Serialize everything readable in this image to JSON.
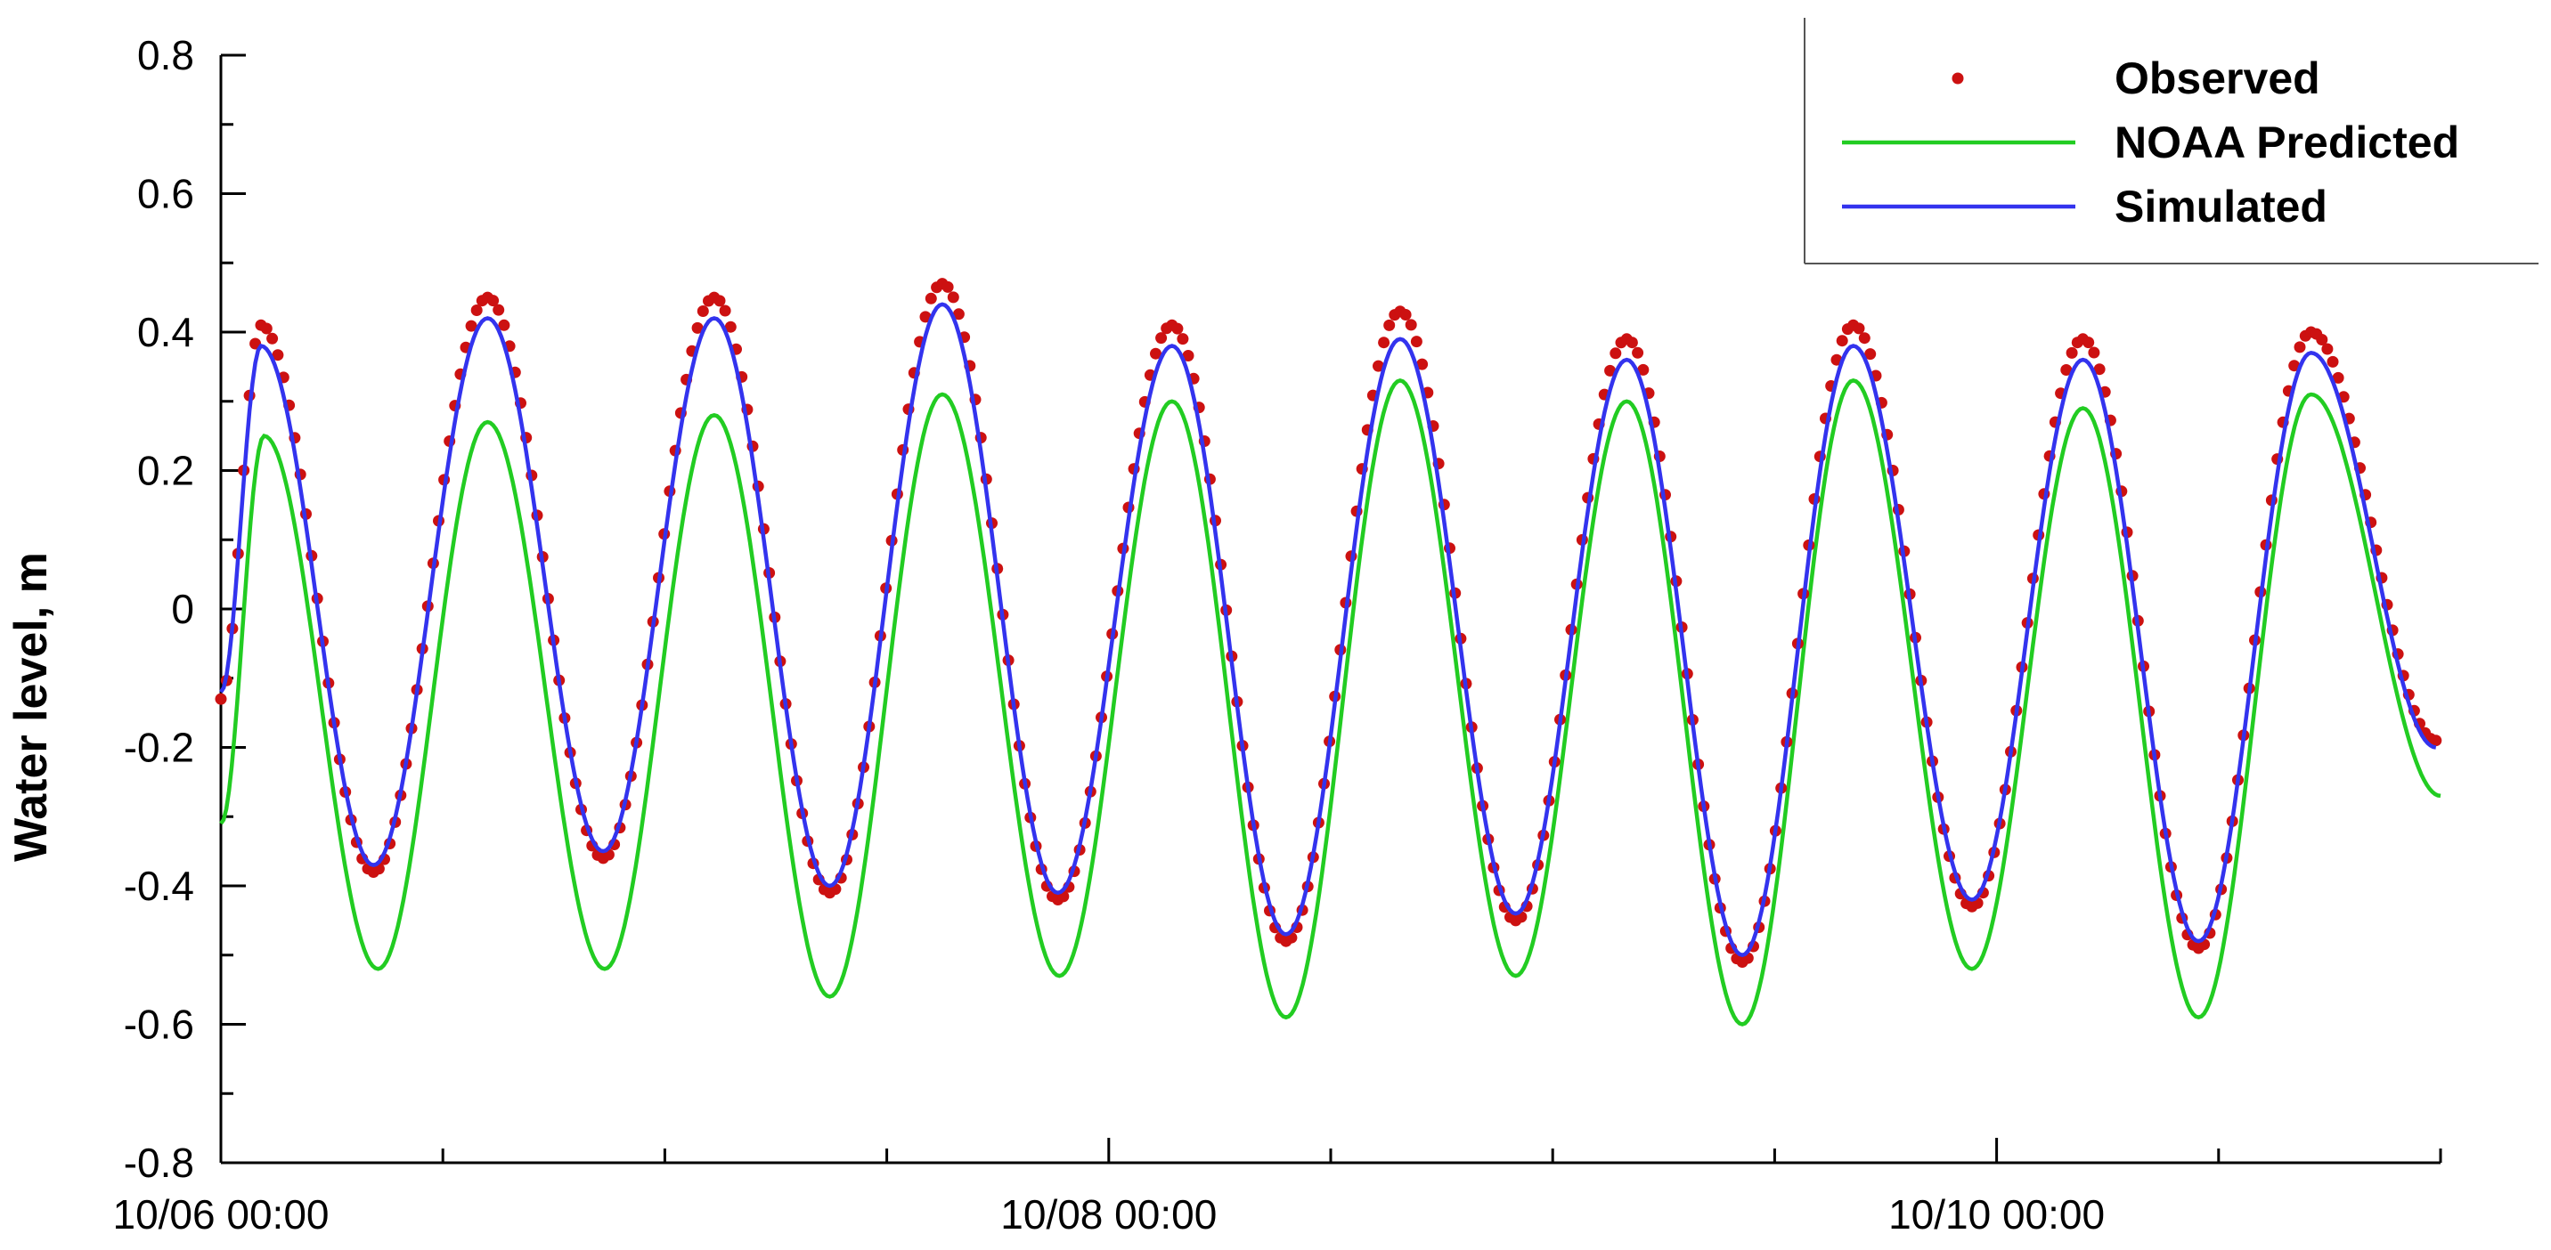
{
  "chart_data": {
    "type": "line",
    "title": "",
    "xlabel": "",
    "ylabel": "Water level, m",
    "x_range": [
      "10/06 00:00",
      "10/11 00:00"
    ],
    "x_tick_labels": [
      "10/06 00:00",
      "10/08 00:00",
      "10/10 00:00"
    ],
    "x_major_ticks": [
      "10/06 00:00",
      "10/08 00:00",
      "10/10 00:00"
    ],
    "x_minor_ticks": [
      "10/06 12:00",
      "10/07 00:00",
      "10/07 12:00",
      "10/08 12:00",
      "10/09 00:00",
      "10/09 12:00",
      "10/10 12:00",
      "10/11 00:00"
    ],
    "ylim": [
      -0.8,
      0.8
    ],
    "y_ticks": [
      -0.8,
      -0.6,
      -0.4,
      -0.2,
      0,
      0.2,
      0.4,
      0.6,
      0.8
    ],
    "y_tick_labels": [
      "-0.8",
      "-0.6",
      "-0.4",
      "-0.2",
      "0",
      "0.2",
      "0.4",
      "0.6",
      "0.8"
    ],
    "grid": false,
    "legend_position": "top-right",
    "series": [
      {
        "name": "Observed",
        "style": "markers",
        "color": "#cc1111",
        "extrema": [
          [
            "10/06 00:00",
            -0.13
          ],
          [
            "10/06 02:10",
            0.41
          ],
          [
            "10/06 08:15",
            -0.38
          ],
          [
            "10/06 14:25",
            0.45
          ],
          [
            "10/06 20:40",
            -0.36
          ],
          [
            "10/07 02:40",
            0.45
          ],
          [
            "10/07 08:55",
            -0.41
          ],
          [
            "10/07 15:00",
            0.47
          ],
          [
            "10/07 21:15",
            -0.42
          ],
          [
            "10/08 03:25",
            0.41
          ],
          [
            "10/08 09:35",
            -0.48
          ],
          [
            "10/08 15:45",
            0.43
          ],
          [
            "10/08 22:00",
            -0.45
          ],
          [
            "10/09 04:00",
            0.39
          ],
          [
            "10/09 10:15",
            -0.51
          ],
          [
            "10/09 16:15",
            0.41
          ],
          [
            "10/09 22:40",
            -0.43
          ],
          [
            "10/10 04:40",
            0.39
          ],
          [
            "10/10 10:55",
            -0.49
          ],
          [
            "10/10 17:00",
            0.4
          ],
          [
            "10/10 23:45",
            -0.19
          ]
        ]
      },
      {
        "name": "NOAA Predicted",
        "style": "line",
        "color": "#22cc22",
        "extrema": [
          [
            "10/06 00:00",
            -0.31
          ],
          [
            "10/06 02:20",
            0.25
          ],
          [
            "10/06 08:30",
            -0.52
          ],
          [
            "10/06 14:25",
            0.27
          ],
          [
            "10/06 20:45",
            -0.52
          ],
          [
            "10/07 02:40",
            0.28
          ],
          [
            "10/07 08:55",
            -0.56
          ],
          [
            "10/07 15:00",
            0.31
          ],
          [
            "10/07 21:20",
            -0.53
          ],
          [
            "10/08 03:25",
            0.3
          ],
          [
            "10/08 09:35",
            -0.59
          ],
          [
            "10/08 15:45",
            0.33
          ],
          [
            "10/08 22:00",
            -0.53
          ],
          [
            "10/09 04:00",
            0.3
          ],
          [
            "10/09 10:15",
            -0.6
          ],
          [
            "10/09 16:15",
            0.33
          ],
          [
            "10/09 22:40",
            -0.52
          ],
          [
            "10/10 04:40",
            0.29
          ],
          [
            "10/10 10:55",
            -0.59
          ],
          [
            "10/10 17:00",
            0.31
          ],
          [
            "10/11 00:00",
            -0.27
          ]
        ]
      },
      {
        "name": "Simulated",
        "style": "line",
        "color": "#3333ee",
        "extrema": [
          [
            "10/06 00:00",
            -0.12
          ],
          [
            "10/06 02:10",
            0.38
          ],
          [
            "10/06 08:15",
            -0.37
          ],
          [
            "10/06 14:25",
            0.42
          ],
          [
            "10/06 20:40",
            -0.35
          ],
          [
            "10/07 02:40",
            0.42
          ],
          [
            "10/07 08:55",
            -0.4
          ],
          [
            "10/07 15:00",
            0.44
          ],
          [
            "10/07 21:15",
            -0.41
          ],
          [
            "10/08 03:25",
            0.38
          ],
          [
            "10/08 09:35",
            -0.47
          ],
          [
            "10/08 15:45",
            0.39
          ],
          [
            "10/08 22:00",
            -0.44
          ],
          [
            "10/09 04:00",
            0.36
          ],
          [
            "10/09 10:15",
            -0.5
          ],
          [
            "10/09 16:15",
            0.38
          ],
          [
            "10/09 22:40",
            -0.42
          ],
          [
            "10/10 04:40",
            0.36
          ],
          [
            "10/10 10:55",
            -0.48
          ],
          [
            "10/10 17:00",
            0.37
          ],
          [
            "10/10 23:45",
            -0.2
          ]
        ]
      }
    ]
  }
}
